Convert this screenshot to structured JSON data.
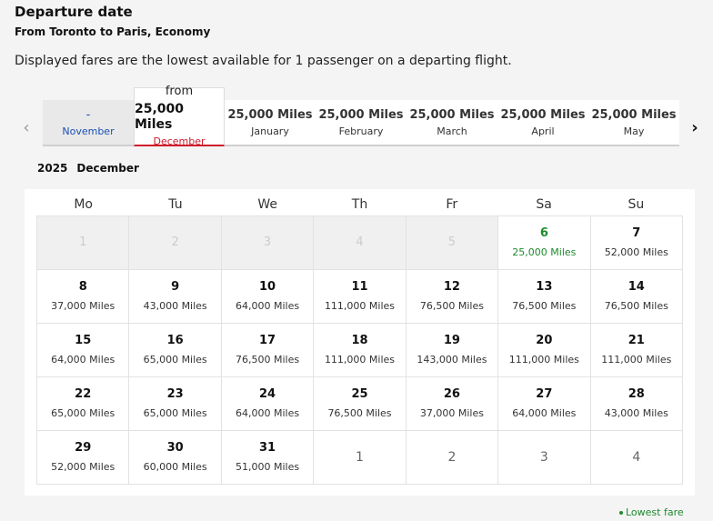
{
  "header": {
    "title": "Departure date",
    "route": "From Toronto to Paris, Economy",
    "note": "Displayed fares are the lowest available for 1 passenger on a departing flight."
  },
  "month_nav": {
    "prev_icon": "chevron-left-icon",
    "next_icon": "chevron-right-icon",
    "tabs": [
      {
        "price": "-",
        "month": "November",
        "state": "disabled"
      },
      {
        "from": "from",
        "price": "25,000 Miles",
        "month": "December",
        "state": "selected"
      },
      {
        "price": "25,000 Miles",
        "month": "January",
        "state": "normal"
      },
      {
        "price": "25,000 Miles",
        "month": "February",
        "state": "normal"
      },
      {
        "price": "25,000 Miles",
        "month": "March",
        "state": "normal"
      },
      {
        "price": "25,000 Miles",
        "month": "April",
        "state": "normal"
      },
      {
        "price": "25,000 Miles",
        "month": "May",
        "state": "normal"
      }
    ]
  },
  "calendar": {
    "year": "2025",
    "month": "December",
    "weekdays": [
      "Mo",
      "Tu",
      "We",
      "Th",
      "Fr",
      "Sa",
      "Su"
    ],
    "days": [
      {
        "day": "1",
        "miles": "",
        "state": "past"
      },
      {
        "day": "2",
        "miles": "",
        "state": "past"
      },
      {
        "day": "3",
        "miles": "",
        "state": "past"
      },
      {
        "day": "4",
        "miles": "",
        "state": "past"
      },
      {
        "day": "5",
        "miles": "",
        "state": "past"
      },
      {
        "day": "6",
        "miles": "25,000 Miles",
        "state": "lowest"
      },
      {
        "day": "7",
        "miles": "52,000 Miles",
        "state": "normal"
      },
      {
        "day": "8",
        "miles": "37,000 Miles",
        "state": "normal"
      },
      {
        "day": "9",
        "miles": "43,000 Miles",
        "state": "normal"
      },
      {
        "day": "10",
        "miles": "64,000 Miles",
        "state": "normal"
      },
      {
        "day": "11",
        "miles": "111,000 Miles",
        "state": "normal"
      },
      {
        "day": "12",
        "miles": "76,500 Miles",
        "state": "normal"
      },
      {
        "day": "13",
        "miles": "76,500 Miles",
        "state": "normal"
      },
      {
        "day": "14",
        "miles": "76,500 Miles",
        "state": "normal"
      },
      {
        "day": "15",
        "miles": "64,000 Miles",
        "state": "normal"
      },
      {
        "day": "16",
        "miles": "65,000 Miles",
        "state": "normal"
      },
      {
        "day": "17",
        "miles": "76,500 Miles",
        "state": "normal"
      },
      {
        "day": "18",
        "miles": "111,000 Miles",
        "state": "normal"
      },
      {
        "day": "19",
        "miles": "143,000 Miles",
        "state": "normal"
      },
      {
        "day": "20",
        "miles": "111,000 Miles",
        "state": "normal"
      },
      {
        "day": "21",
        "miles": "111,000 Miles",
        "state": "normal"
      },
      {
        "day": "22",
        "miles": "65,000 Miles",
        "state": "normal"
      },
      {
        "day": "23",
        "miles": "65,000 Miles",
        "state": "normal"
      },
      {
        "day": "24",
        "miles": "64,000 Miles",
        "state": "normal"
      },
      {
        "day": "25",
        "miles": "76,500 Miles",
        "state": "normal"
      },
      {
        "day": "26",
        "miles": "37,000 Miles",
        "state": "normal"
      },
      {
        "day": "27",
        "miles": "64,000 Miles",
        "state": "normal"
      },
      {
        "day": "28",
        "miles": "43,000 Miles",
        "state": "normal"
      },
      {
        "day": "29",
        "miles": "52,000 Miles",
        "state": "normal"
      },
      {
        "day": "30",
        "miles": "60,000 Miles",
        "state": "normal"
      },
      {
        "day": "31",
        "miles": "51,000 Miles",
        "state": "normal"
      },
      {
        "day": "1",
        "miles": "",
        "state": "next"
      },
      {
        "day": "2",
        "miles": "",
        "state": "next"
      },
      {
        "day": "3",
        "miles": "",
        "state": "next"
      },
      {
        "day": "4",
        "miles": "",
        "state": "next"
      }
    ]
  },
  "legend": {
    "label": "Lowest fare",
    "color": "#1e8a2e"
  }
}
